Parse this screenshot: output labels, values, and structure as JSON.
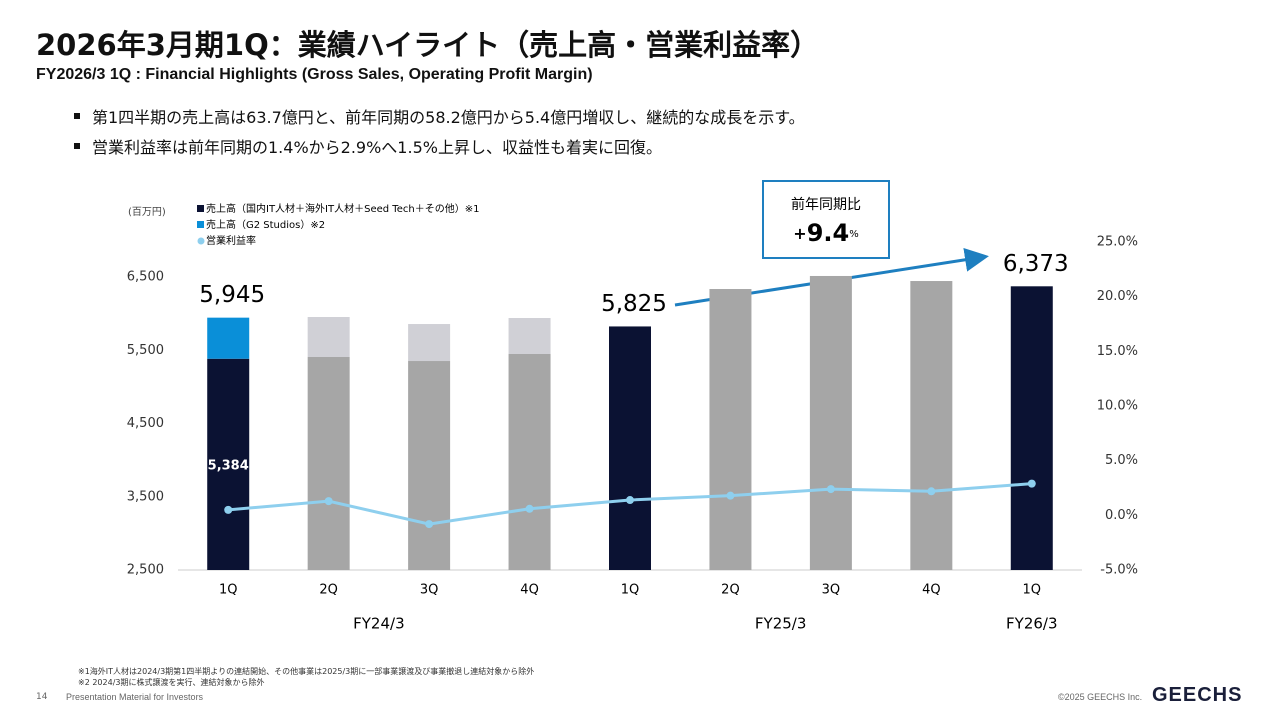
{
  "header": {
    "title": "2026年3月期1Q：業績ハイライト（売上高・営業利益率）",
    "subtitle": "FY2026/3 1Q : Financial Highlights (Gross Sales, Operating Profit Margin)"
  },
  "bullets": [
    "第1四半期の売上高は63.7億円と、前年同期の58.2億円から5.4億円増収し、継続的な成長を示す。",
    "営業利益率は前年同期の1.4%から2.9%へ1.5%上昇し、収益性も着実に回復。"
  ],
  "chart_data": {
    "type": "stacked_bar_line",
    "y_unit": "(百万円)",
    "categories": [
      "1Q",
      "2Q",
      "3Q",
      "4Q",
      "1Q",
      "2Q",
      "3Q",
      "4Q",
      "1Q"
    ],
    "groups": [
      {
        "label": "FY24/3",
        "count": 4
      },
      {
        "label": "FY25/3",
        "count": 4
      },
      {
        "label": "FY26/3",
        "count": 1
      }
    ],
    "series": [
      {
        "name": "売上高（国内IT人材＋海外IT人材＋Seed Tech＋その他）※1",
        "color": "#0b1233",
        "colors": [
          "#0b1233",
          "#a6a6a6",
          "#a6a6a6",
          "#a6a6a6",
          "#0b1233",
          "#a6a6a6",
          "#a6a6a6",
          "#a6a6a6",
          "#0b1233"
        ],
        "values": [
          5384,
          5408,
          5353,
          5449,
          5825,
          6336,
          6514,
          6445,
          6373
        ],
        "value_labels": [
          "5,384",
          null,
          null,
          null,
          null,
          null,
          null,
          null,
          null
        ]
      },
      {
        "name": "売上高（G2 Studios）※2",
        "color": "#0a8fd8",
        "colors": [
          "#0a8fd8",
          "#d0d0d6",
          "#d0d0d6",
          "#d0d0d6",
          null,
          null,
          null,
          null,
          null
        ],
        "values": [
          561,
          546,
          505,
          491,
          null,
          null,
          null,
          null,
          null
        ]
      },
      {
        "name": "営業利益率",
        "color": "#8ecfee",
        "axis": "y2",
        "values": [
          0.5,
          1.3,
          -0.8,
          0.6,
          1.4,
          1.8,
          2.4,
          2.2,
          2.9
        ]
      }
    ],
    "total_labels": [
      "5,945",
      null,
      null,
      null,
      "5,825",
      null,
      null,
      null,
      "6,373"
    ],
    "ylim": [
      2500,
      6500
    ],
    "yticks": [
      {
        "value": 2500,
        "label": "2,500"
      },
      {
        "value": 3500,
        "label": "3,500"
      },
      {
        "value": 4500,
        "label": "4,500"
      },
      {
        "value": 5500,
        "label": "5,500"
      },
      {
        "value": 6500,
        "label": "6,500"
      }
    ],
    "y2lim": [
      -5,
      25
    ],
    "y2ticks": [
      {
        "value": -5,
        "label": "-5.0%"
      },
      {
        "value": 0,
        "label": "0.0%"
      },
      {
        "value": 5,
        "label": "5.0%"
      },
      {
        "value": 10,
        "label": "10.0%"
      },
      {
        "value": 15,
        "label": "15.0%"
      },
      {
        "value": 20,
        "label": "20.0%"
      },
      {
        "value": 25,
        "label": "25.0%"
      }
    ],
    "callout": {
      "title": "前年同期比",
      "parts": [
        "+",
        "9.4",
        "%"
      ]
    }
  },
  "notes": [
    "※1海外IT人材は2024/3期第1四半期よりの連結開始、その他事業は2025/3期に一部事業譲渡及び事業撤退し連結対象から除外",
    "※2 2024/3期に株式譲渡を実行、連結対象から除外"
  ],
  "footer": {
    "page": "14",
    "label": "Presentation Material for Investors",
    "copyright": "©2025 GEECHS Inc.",
    "logo": "GEECHS"
  }
}
